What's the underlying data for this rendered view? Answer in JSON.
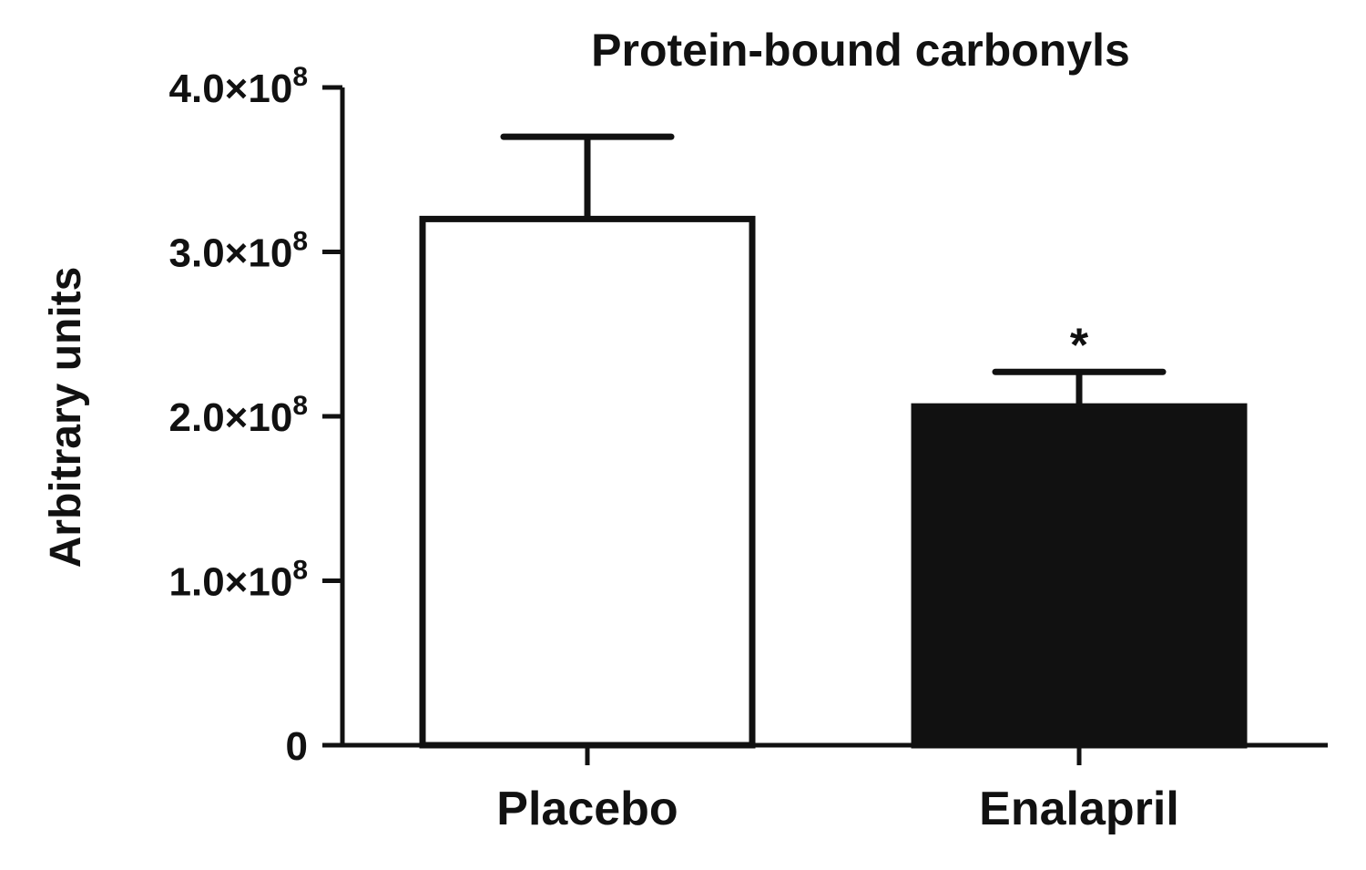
{
  "chart_data": {
    "type": "bar",
    "title": "Protein-bound carbonyls",
    "xlabel": "",
    "ylabel": "Arbitrary units",
    "ylim": [
      0,
      400000000
    ],
    "categories": [
      "Placebo",
      "Enalapril"
    ],
    "values": [
      320000000,
      206000000
    ],
    "error_upper": [
      370000000,
      227000000
    ],
    "bar_fills": [
      "#ffffff",
      "#111111"
    ],
    "bar_stroke": "#111111",
    "significance": [
      "",
      "*"
    ],
    "y_ticks": [
      {
        "value": 0,
        "mantissa": "0",
        "exponent": ""
      },
      {
        "value": 100000000,
        "mantissa": "1.0×10",
        "exponent": "8"
      },
      {
        "value": 200000000,
        "mantissa": "2.0×10",
        "exponent": "8"
      },
      {
        "value": 300000000,
        "mantissa": "3.0×10",
        "exponent": "8"
      },
      {
        "value": 400000000,
        "mantissa": "4.0×10",
        "exponent": "8"
      }
    ],
    "grid": false,
    "legend": "none"
  }
}
